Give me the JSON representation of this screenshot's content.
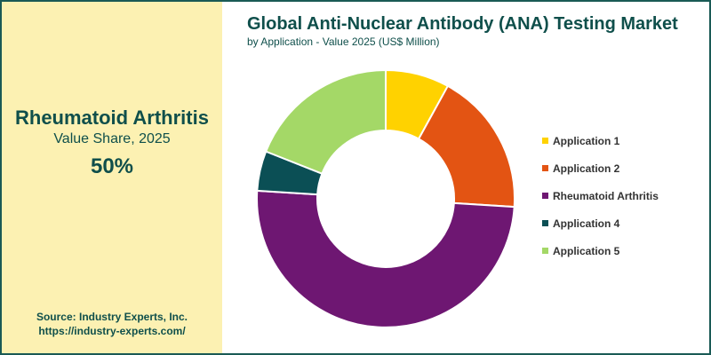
{
  "highlight": {
    "title": "Rheumatoid Arthritis",
    "subtitle": "Value Share, 2025",
    "value": "50%"
  },
  "source": {
    "line1": "Source: Industry Experts, Inc.",
    "line2": "https://industry-experts.com/"
  },
  "chart_data": {
    "type": "pie",
    "donut": true,
    "title": "Global Anti-Nuclear Antibody (ANA) Testing Market",
    "subtitle": "by Application - Value 2025 (US$ Million)",
    "legend_position": "right",
    "categories": [
      "Application 1",
      "Application 2",
      "Rheumatoid Arthritis",
      "Application 4",
      "Application 5"
    ],
    "values": [
      8,
      18,
      50,
      5,
      19
    ],
    "colors": [
      "#ffd200",
      "#e35413",
      "#6e1772",
      "#0b4f55",
      "#a4d867"
    ]
  }
}
